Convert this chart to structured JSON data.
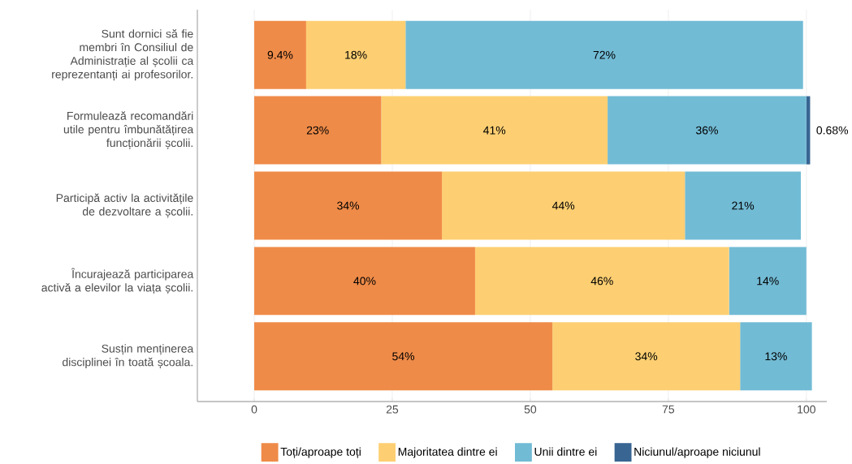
{
  "chart_data": {
    "type": "bar",
    "orientation": "horizontal",
    "stacked": true,
    "categories": [
      "Sunt dornici să fie membri în Consiliul de Administrație al școlii ca reprezentanți ai profesorilor.",
      "Formulează recomandări utile pentru îmbunătățirea funcționării școlii.",
      "Participă activ la activitățile de dezvoltare a școlii.",
      "Încurajează participarea activă a elevilor la viața școlii.",
      "Susțin menținerea disciplinei în toată școala."
    ],
    "series": [
      {
        "name": "Toți/aproape toți",
        "color": "#ef8b48",
        "values": [
          9.4,
          23,
          34,
          40,
          54
        ],
        "value_labels": [
          "9.4%",
          "23%",
          "34%",
          "40%",
          "54%"
        ]
      },
      {
        "name": "Majoritatea dintre ei",
        "color": "#fdcf72",
        "values": [
          18,
          41,
          44,
          46,
          34
        ],
        "value_labels": [
          "18%",
          "41%",
          "44%",
          "46%",
          "34%"
        ]
      },
      {
        "name": "Unii dintre ei",
        "color": "#72bbd5",
        "values": [
          72,
          36,
          21,
          14,
          13
        ],
        "value_labels": [
          "72%",
          "36%",
          "21%",
          "14%",
          "13%"
        ]
      },
      {
        "name": "Niciunul/aproape niciunul",
        "color": "#386592",
        "values": [
          null,
          0.68,
          null,
          null,
          null
        ],
        "value_labels": [
          null,
          "0.68%",
          null,
          null,
          null
        ]
      }
    ],
    "xlim": [
      -10.3,
      103.7
    ],
    "xticks": [
      0,
      25,
      50,
      75,
      100
    ],
    "grid": "x",
    "legend": "bottom"
  }
}
